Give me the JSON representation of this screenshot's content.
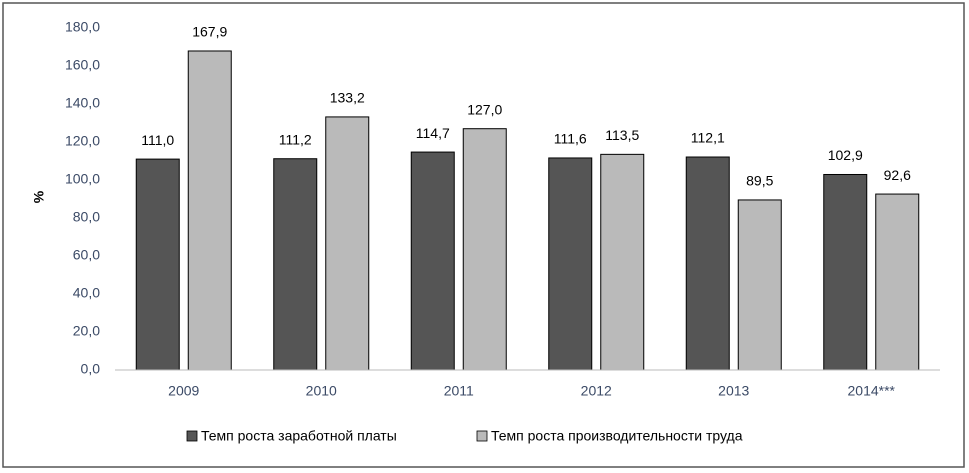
{
  "chart_data": {
    "type": "bar",
    "y_label": "%",
    "categories": [
      "2009",
      "2010",
      "2011",
      "2012",
      "2013",
      "2014***"
    ],
    "series": [
      {
        "name": "Темп роста заработной платы",
        "color": "#555555",
        "values": [
          111.0,
          111.2,
          114.7,
          111.6,
          112.1,
          102.9
        ],
        "value_labels": [
          "111,0",
          "111,2",
          "114,7",
          "111,6",
          "112,1",
          "102,9"
        ]
      },
      {
        "name": "Темп роста производительности труда",
        "color": "#bababa",
        "values": [
          167.9,
          133.2,
          127.0,
          113.5,
          89.5,
          92.6
        ],
        "value_labels": [
          "167,9",
          "133,2",
          "127,0",
          "113,5",
          "89,5",
          "92,6"
        ]
      }
    ],
    "ylim": [
      0,
      180
    ],
    "yticks": [
      {
        "value": 0,
        "label": "0,0"
      },
      {
        "value": 20,
        "label": "20,0"
      },
      {
        "value": 40,
        "label": "40,0"
      },
      {
        "value": 60,
        "label": "60,0"
      },
      {
        "value": 80,
        "label": "80,0"
      },
      {
        "value": 100,
        "label": "100,0"
      },
      {
        "value": 120,
        "label": "120,0"
      },
      {
        "value": 140,
        "label": "140,0"
      },
      {
        "value": 160,
        "label": "160,0"
      },
      {
        "value": 180,
        "label": "180,0"
      }
    ],
    "grid": false
  }
}
